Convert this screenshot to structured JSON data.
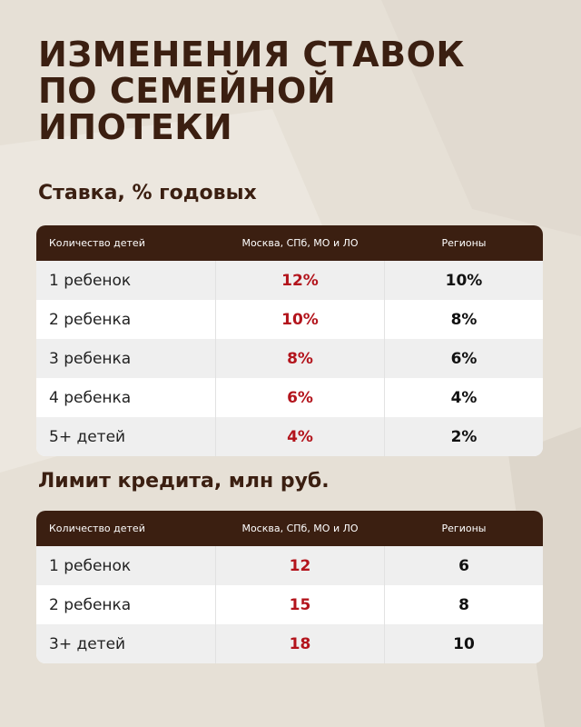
{
  "title": [
    "ИЗМЕНЕНИЯ СТАВОК",
    "ПО СЕМЕЙНОЙ",
    "ИПОТЕКИ"
  ],
  "sections": [
    {
      "heading": "Ставка, % годовых",
      "table": {
        "header": [
          "Количество детей",
          "Москва, СПб, МО и ЛО",
          "Регионы"
        ],
        "rows": [
          [
            "1 ребенок",
            "12%",
            "10%"
          ],
          [
            "2 ребенка",
            "10%",
            "8%"
          ],
          [
            "3 ребенка",
            "8%",
            "6%"
          ],
          [
            "4 ребенка",
            "6%",
            "4%"
          ],
          [
            "5+ детей",
            "4%",
            "2%"
          ]
        ]
      }
    },
    {
      "heading": "Лимит кредита, млн руб.",
      "table": {
        "header": [
          "Количество детей",
          "Москва, СПб, МО и ЛО",
          "Регионы"
        ],
        "rows": [
          [
            "1 ребенок",
            "12",
            "6"
          ],
          [
            "2 ребенка",
            "15",
            "8"
          ],
          [
            "3+ детей",
            "18",
            "10"
          ]
        ]
      }
    }
  ]
}
